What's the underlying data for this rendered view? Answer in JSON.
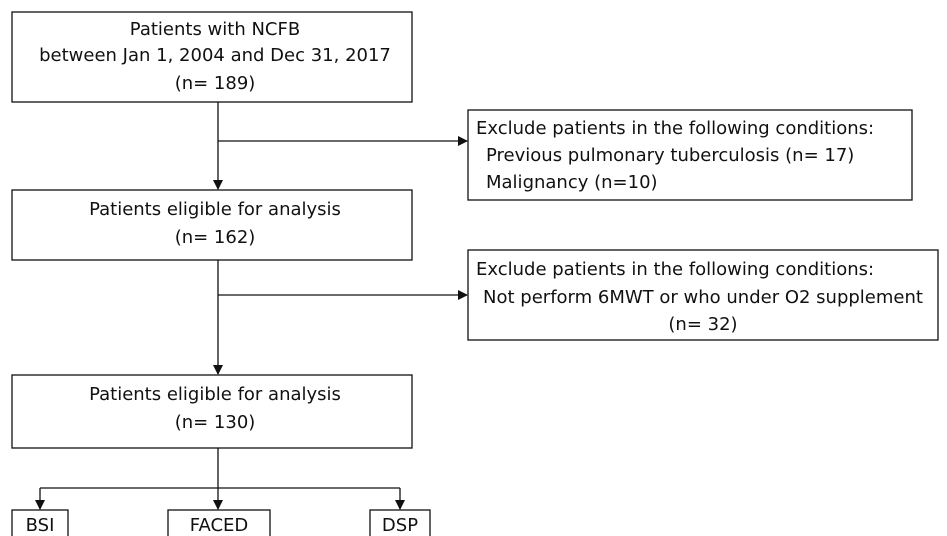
{
  "nodes": [
    {
      "lines": [
        "Patients with NCFB",
        "between Jan 1, 2004 and Dec 31, 2017",
        "(n= 189)"
      ]
    },
    {
      "lines": [
        "Exclude patients in the following conditions:",
        "Previous pulmonary tuberculosis (n= 17)",
        "Malignancy (n=10)"
      ]
    },
    {
      "lines": [
        "Patients eligible for analysis",
        "(n= 162)"
      ]
    },
    {
      "lines": [
        "Exclude patients in the following conditions:",
        "Not perform 6MWT or who under O2 supplement",
        "(n= 32)"
      ]
    },
    {
      "lines": [
        "Patients eligible for analysis",
        "(n= 130)"
      ]
    },
    {
      "lines": [
        "BSI"
      ]
    },
    {
      "lines": [
        "FACED"
      ]
    },
    {
      "lines": [
        "DSP"
      ]
    }
  ]
}
